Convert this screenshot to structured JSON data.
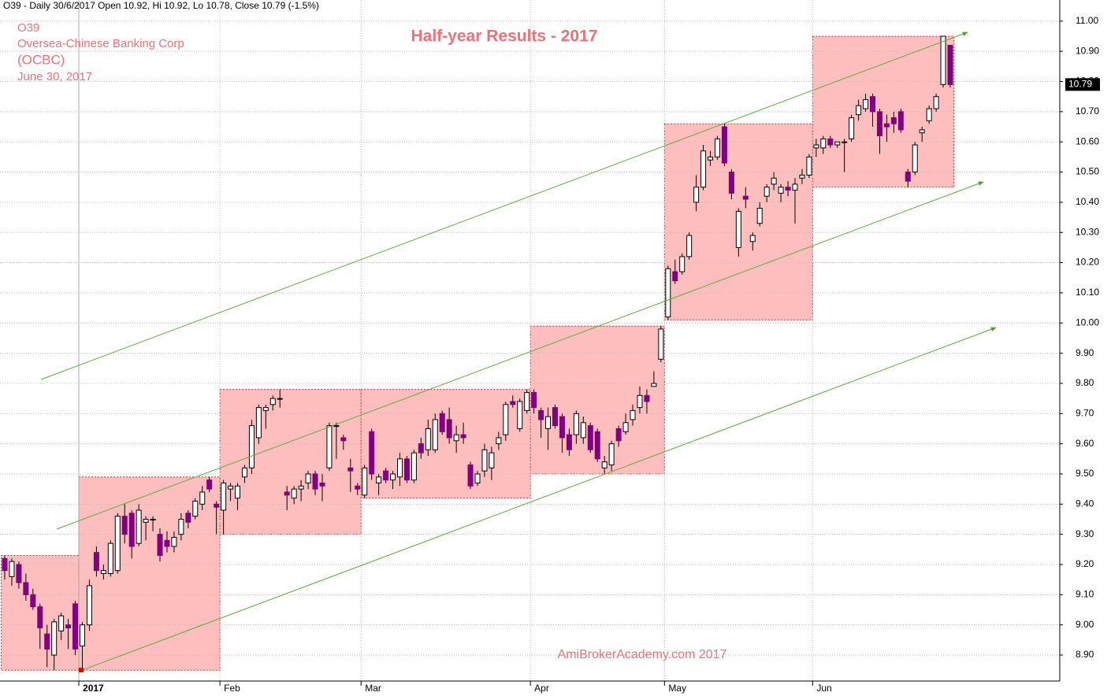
{
  "chart_data": {
    "type": "candlestick",
    "header": "O39 - Daily 30/6/2017 Open 10.92, Hi 10.92, Lo 10.78, Close 10.79 (-1.5%)",
    "symbol": "O39",
    "company": "Oversea-Chinese Banking Corp",
    "short_name": "(OCBC)",
    "date": "June 30, 2017",
    "title": "Half-year Results - 2017",
    "watermark": "AmiBrokerAcademy.com  2017",
    "up_color": "#ffffff",
    "down_color": "#800080",
    "range_color": "#ffb3b3",
    "grid": true,
    "ylim": [
      8.814,
      11.07
    ],
    "yticks": [
      {
        "value": 8.9,
        "label": "8.90"
      },
      {
        "value": 9.0,
        "label": "9.00"
      },
      {
        "value": 9.1,
        "label": "9.10"
      },
      {
        "value": 9.2,
        "label": "9.20"
      },
      {
        "value": 9.3,
        "label": "9.30"
      },
      {
        "value": 9.4,
        "label": "9.40"
      },
      {
        "value": 9.5,
        "label": "9.50"
      },
      {
        "value": 9.6,
        "label": "9.60"
      },
      {
        "value": 9.7,
        "label": "9.70"
      },
      {
        "value": 9.8,
        "label": "9.80"
      },
      {
        "value": 9.9,
        "label": "9.90"
      },
      {
        "value": 10.0,
        "label": "10.00"
      },
      {
        "value": 10.1,
        "label": "10.10"
      },
      {
        "value": 10.2,
        "label": "10.20"
      },
      {
        "value": 10.3,
        "label": "10.30"
      },
      {
        "value": 10.4,
        "label": "10.40"
      },
      {
        "value": 10.5,
        "label": "10.50"
      },
      {
        "value": 10.6,
        "label": "10.60"
      },
      {
        "value": 10.7,
        "label": "10.70"
      },
      {
        "value": 10.8,
        "label": "10.80"
      },
      {
        "value": 10.9,
        "label": "10.90"
      },
      {
        "value": 11.0,
        "label": "11.00"
      }
    ],
    "categories": [
      null,
      null,
      null,
      null,
      null,
      null,
      null,
      null,
      null,
      null,
      null,
      "2017",
      null,
      null,
      null,
      null,
      null,
      null,
      null,
      null,
      null,
      null,
      null,
      null,
      null,
      null,
      null,
      null,
      null,
      null,
      null,
      "Feb",
      null,
      null,
      null,
      null,
      null,
      null,
      null,
      null,
      null,
      null,
      null,
      null,
      null,
      null,
      null,
      null,
      null,
      null,
      null,
      "Mar",
      null,
      null,
      null,
      null,
      null,
      null,
      null,
      null,
      null,
      null,
      null,
      null,
      null,
      null,
      null,
      null,
      null,
      null,
      null,
      null,
      null,
      null,
      null,
      "Apr",
      null,
      null,
      null,
      null,
      null,
      null,
      null,
      null,
      null,
      null,
      null,
      null,
      null,
      null,
      null,
      null,
      null,
      null,
      "May",
      null,
      null,
      null,
      null,
      null,
      null,
      null,
      null,
      null,
      null,
      null,
      null,
      null,
      null,
      null,
      null,
      null,
      null,
      null,
      null,
      "Jun",
      null,
      null,
      null,
      null,
      null,
      null,
      null,
      null,
      null,
      null,
      null,
      null,
      null,
      null,
      null,
      null,
      null,
      null,
      null,
      null
    ],
    "ohlc": [
      [
        9.22,
        9.23,
        9.15,
        9.18
      ],
      [
        9.16,
        9.22,
        9.13,
        9.21
      ],
      [
        9.2,
        9.21,
        9.12,
        9.14
      ],
      [
        9.14,
        9.17,
        9.08,
        9.1
      ],
      [
        9.1,
        9.12,
        9.05,
        9.06
      ],
      [
        9.06,
        9.07,
        8.92,
        8.99
      ],
      [
        8.97,
        9.0,
        8.86,
        8.92
      ],
      [
        8.9,
        9.02,
        8.85,
        9.01
      ],
      [
        8.98,
        9.04,
        8.95,
        9.03
      ],
      [
        9.0,
        9.02,
        8.92,
        8.99
      ],
      [
        9.07,
        9.08,
        8.9,
        8.92
      ],
      [
        8.93,
        9.01,
        8.85,
        9.0
      ],
      [
        9.0,
        9.15,
        8.98,
        9.13
      ],
      [
        9.24,
        9.26,
        9.16,
        9.18
      ],
      [
        9.17,
        9.2,
        9.15,
        9.18
      ],
      [
        9.17,
        9.28,
        9.16,
        9.27
      ],
      [
        9.18,
        9.37,
        9.17,
        9.36
      ],
      [
        9.36,
        9.4,
        9.27,
        9.3
      ],
      [
        9.37,
        9.38,
        9.22,
        9.26
      ],
      [
        9.27,
        9.4,
        9.26,
        9.38
      ],
      [
        9.34,
        9.36,
        9.28,
        9.35
      ],
      [
        9.35,
        9.36,
        9.31,
        9.35
      ],
      [
        9.3,
        9.32,
        9.21,
        9.23
      ],
      [
        9.28,
        9.31,
        9.24,
        9.26
      ],
      [
        9.26,
        9.31,
        9.24,
        9.29
      ],
      [
        9.3,
        9.37,
        9.28,
        9.35
      ],
      [
        9.37,
        9.38,
        9.32,
        9.34
      ],
      [
        9.36,
        9.42,
        9.35,
        9.41
      ],
      [
        9.4,
        9.46,
        9.38,
        9.44
      ],
      [
        9.48,
        9.49,
        9.44,
        9.45
      ],
      [
        9.4,
        9.41,
        9.3,
        9.39
      ],
      [
        9.38,
        9.48,
        9.3,
        9.47
      ],
      [
        9.45,
        9.47,
        9.41,
        9.46
      ],
      [
        9.42,
        9.47,
        9.38,
        9.46
      ],
      [
        9.49,
        9.53,
        9.47,
        9.52
      ],
      [
        9.52,
        9.68,
        9.5,
        9.66
      ],
      [
        9.62,
        9.73,
        9.6,
        9.72
      ],
      [
        9.71,
        9.73,
        9.65,
        9.72
      ],
      [
        9.73,
        9.76,
        9.71,
        9.75
      ],
      [
        9.75,
        9.78,
        9.72,
        9.75
      ],
      [
        9.44,
        9.46,
        9.38,
        9.43
      ],
      [
        9.42,
        9.46,
        9.4,
        9.45
      ],
      [
        9.45,
        9.48,
        9.41,
        9.46
      ],
      [
        9.47,
        9.51,
        9.45,
        9.5
      ],
      [
        9.5,
        9.51,
        9.43,
        9.45
      ],
      [
        9.47,
        9.5,
        9.41,
        9.46
      ],
      [
        9.52,
        9.67,
        9.51,
        9.66
      ],
      [
        9.66,
        9.67,
        9.55,
        9.66
      ],
      [
        9.62,
        9.63,
        9.58,
        9.61
      ],
      [
        9.52,
        9.55,
        9.44,
        9.51
      ],
      [
        9.46,
        9.47,
        9.43,
        9.45
      ],
      [
        9.43,
        9.53,
        9.42,
        9.52
      ],
      [
        9.64,
        9.65,
        9.48,
        9.5
      ],
      [
        9.47,
        9.5,
        9.43,
        9.49
      ],
      [
        9.51,
        9.52,
        9.47,
        9.48
      ],
      [
        9.48,
        9.51,
        9.45,
        9.5
      ],
      [
        9.49,
        9.57,
        9.46,
        9.55
      ],
      [
        9.55,
        9.56,
        9.47,
        9.48
      ],
      [
        9.48,
        9.58,
        9.47,
        9.57
      ],
      [
        9.6,
        9.62,
        9.55,
        9.57
      ],
      [
        9.58,
        9.68,
        9.56,
        9.65
      ],
      [
        9.58,
        9.7,
        9.57,
        9.68
      ],
      [
        9.7,
        9.71,
        9.63,
        9.64
      ],
      [
        9.68,
        9.72,
        9.6,
        9.62
      ],
      [
        9.61,
        9.66,
        9.57,
        9.63
      ],
      [
        9.63,
        9.67,
        9.6,
        9.62
      ],
      [
        9.53,
        9.54,
        9.45,
        9.46
      ],
      [
        9.47,
        9.51,
        9.46,
        9.5
      ],
      [
        9.51,
        9.6,
        9.49,
        9.58
      ],
      [
        9.52,
        9.59,
        9.48,
        9.57
      ],
      [
        9.6,
        9.64,
        9.58,
        9.62
      ],
      [
        9.63,
        9.74,
        9.61,
        9.73
      ],
      [
        9.74,
        9.76,
        9.72,
        9.73
      ],
      [
        9.65,
        9.75,
        9.64,
        9.74
      ],
      [
        9.71,
        9.78,
        9.7,
        9.77
      ],
      [
        9.77,
        9.78,
        9.7,
        9.72
      ],
      [
        9.71,
        9.72,
        9.62,
        9.68
      ],
      [
        9.65,
        9.72,
        9.58,
        9.69
      ],
      [
        9.72,
        9.73,
        9.65,
        9.66
      ],
      [
        9.69,
        9.7,
        9.57,
        9.62
      ],
      [
        9.63,
        9.65,
        9.56,
        9.58
      ],
      [
        9.63,
        9.71,
        9.6,
        9.7
      ],
      [
        9.62,
        9.69,
        9.6,
        9.67
      ],
      [
        9.66,
        9.67,
        9.57,
        9.58
      ],
      [
        9.64,
        9.65,
        9.54,
        9.55
      ],
      [
        9.52,
        9.56,
        9.5,
        9.54
      ],
      [
        9.53,
        9.61,
        9.51,
        9.6
      ],
      [
        9.65,
        9.66,
        9.59,
        9.61
      ],
      [
        9.64,
        9.7,
        9.63,
        9.67
      ],
      [
        9.68,
        9.73,
        9.66,
        9.71
      ],
      [
        9.72,
        9.79,
        9.7,
        9.76
      ],
      [
        9.76,
        9.78,
        9.7,
        9.74
      ],
      [
        9.79,
        9.84,
        9.79,
        9.8
      ],
      [
        9.88,
        9.99,
        9.87,
        9.98
      ],
      [
        10.02,
        10.19,
        10.01,
        10.18
      ],
      [
        10.17,
        10.21,
        10.13,
        10.14
      ],
      [
        10.17,
        10.23,
        10.16,
        10.22
      ],
      [
        10.22,
        10.3,
        10.21,
        10.29
      ],
      [
        10.4,
        10.49,
        10.37,
        10.45
      ],
      [
        10.45,
        10.59,
        10.44,
        10.57
      ],
      [
        10.54,
        10.57,
        10.52,
        10.55
      ],
      [
        10.55,
        10.62,
        10.54,
        10.61
      ],
      [
        10.65,
        10.66,
        10.52,
        10.53
      ],
      [
        10.5,
        10.51,
        10.41,
        10.43
      ],
      [
        10.25,
        10.38,
        10.22,
        10.37
      ],
      [
        10.42,
        10.45,
        10.38,
        10.41
      ],
      [
        10.27,
        10.3,
        10.24,
        10.29
      ],
      [
        10.33,
        10.4,
        10.32,
        10.38
      ],
      [
        10.42,
        10.46,
        10.4,
        10.45
      ],
      [
        10.46,
        10.5,
        10.44,
        10.48
      ],
      [
        10.43,
        10.46,
        10.4,
        10.45
      ],
      [
        10.45,
        10.47,
        10.42,
        10.44
      ],
      [
        10.44,
        10.48,
        10.33,
        10.46
      ],
      [
        10.48,
        10.51,
        10.46,
        10.49
      ],
      [
        10.49,
        10.56,
        10.48,
        10.55
      ],
      [
        10.58,
        10.61,
        10.55,
        10.59
      ],
      [
        10.58,
        10.62,
        10.56,
        10.61
      ],
      [
        10.61,
        10.62,
        10.58,
        10.59
      ],
      [
        10.59,
        10.6,
        10.58,
        10.6
      ],
      [
        10.6,
        10.61,
        10.5,
        10.6
      ],
      [
        10.61,
        10.69,
        10.6,
        10.68
      ],
      [
        10.69,
        10.74,
        10.67,
        10.72
      ],
      [
        10.71,
        10.76,
        10.7,
        10.74
      ],
      [
        10.75,
        10.76,
        10.65,
        10.7
      ],
      [
        10.7,
        10.71,
        10.56,
        10.62
      ],
      [
        10.66,
        10.69,
        10.6,
        10.65
      ],
      [
        10.68,
        10.7,
        10.63,
        10.66
      ],
      [
        10.7,
        10.71,
        10.63,
        10.64
      ],
      [
        10.5,
        10.51,
        10.45,
        10.47
      ],
      [
        10.5,
        10.6,
        10.49,
        10.59
      ],
      [
        10.63,
        10.65,
        10.6,
        10.64
      ],
      [
        10.67,
        10.72,
        10.66,
        10.71
      ],
      [
        10.71,
        10.76,
        10.7,
        10.75
      ],
      [
        10.79,
        10.95,
        10.78,
        10.95
      ],
      [
        10.92,
        10.92,
        10.78,
        10.79
      ]
    ]
  }
}
